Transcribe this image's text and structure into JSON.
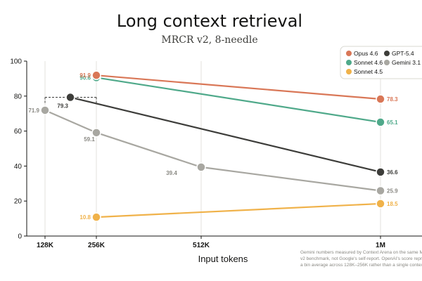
{
  "chart_data": {
    "type": "line",
    "title": "Long context retrieval",
    "subtitle": "MRCR v2, 8-needle",
    "xlabel": "Input tokens",
    "ylabel": "",
    "categories": [
      "128K",
      "256K",
      "512K",
      "1M"
    ],
    "x_positions_tokens_k": [
      128,
      256,
      512,
      1024
    ],
    "ylim": [
      0,
      100
    ],
    "yticks": [
      0,
      20,
      40,
      60,
      80,
      100
    ],
    "grid": "vertical lines at each x tick",
    "legend_position": "top-right",
    "series": [
      {
        "name": "Opus 4.6",
        "color": "#d97757",
        "points": [
          {
            "x": "256K",
            "y": 91.9,
            "label": "91.9"
          },
          {
            "x": "1M",
            "y": 78.3,
            "label": "78.3"
          }
        ]
      },
      {
        "name": "Sonnet 4.6",
        "color": "#4fa98a",
        "points": [
          {
            "x": "256K",
            "y": 90.6,
            "label": "90.6"
          },
          {
            "x": "1M",
            "y": 65.1,
            "label": "65.1"
          }
        ]
      },
      {
        "name": "Sonnet 4.5",
        "color": "#f0b24a",
        "points": [
          {
            "x": "256K",
            "y": 10.8,
            "label": "10.8"
          },
          {
            "x": "1M",
            "y": 18.5,
            "label": "18.5"
          }
        ]
      },
      {
        "name": "GPT-5.4",
        "color": "#3d3d3a",
        "points": [
          {
            "x": "192K",
            "y": 79.3,
            "label": "79.3"
          },
          {
            "x": "1M",
            "y": 36.6,
            "label": "36.6"
          }
        ]
      },
      {
        "name": "Gemini 3.1 Pr",
        "color": "#a8a7a1",
        "points": [
          {
            "x": "128K",
            "y": 71.9,
            "label": "71.9"
          },
          {
            "x": "256K",
            "y": 59.1,
            "label": "59.1"
          },
          {
            "x": "512K",
            "y": 39.4,
            "label": "39.4"
          },
          {
            "x": "1M",
            "y": 25.9,
            "label": "25.9"
          }
        ]
      }
    ],
    "annotations": [
      {
        "type": "dashed-bracket",
        "from": "128K",
        "to": "256K",
        "y": 79.3
      }
    ],
    "footnote": [
      "Gemini numbers measured by Context Arena on the same MRC",
      "v2 benchmark, not Google's self-report. OpenAI's score repres",
      "a bin average across 128K–256K rather than a single context len"
    ]
  }
}
